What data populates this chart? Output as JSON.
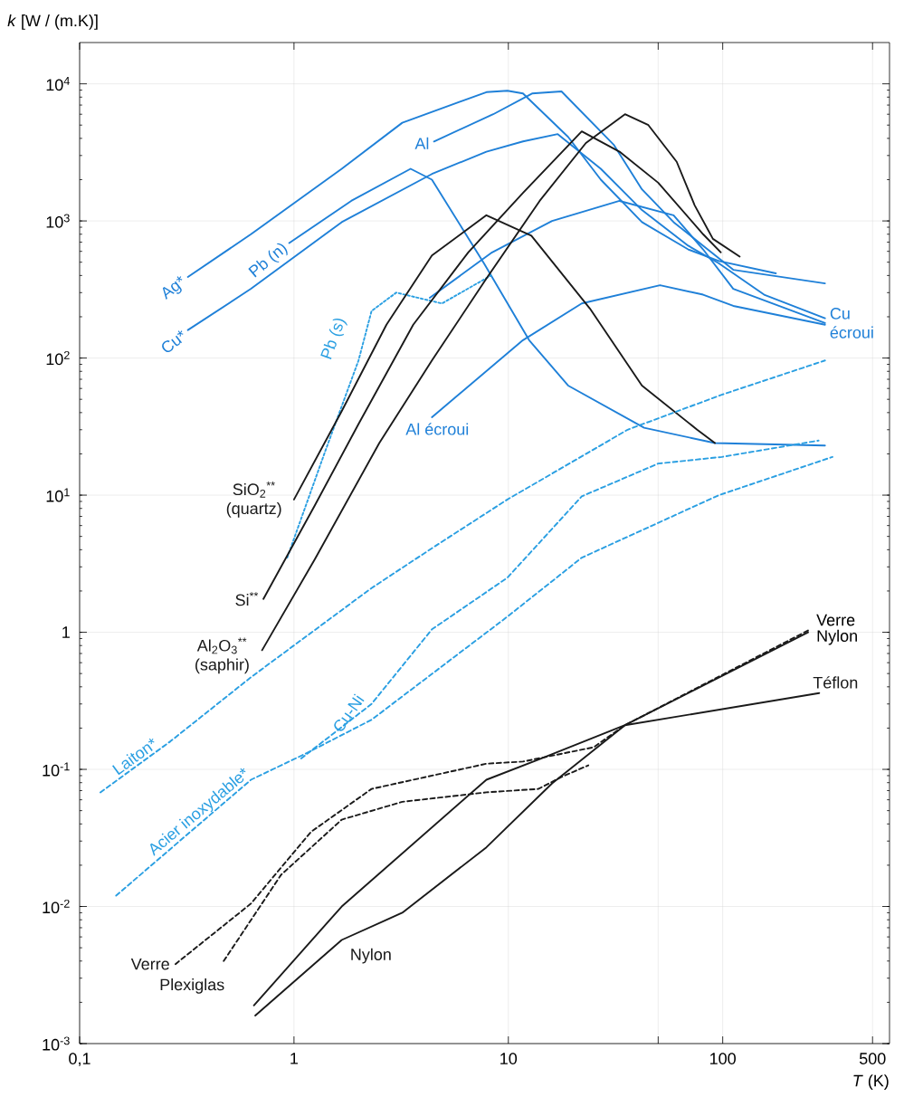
{
  "chart_data": {
    "type": "line",
    "xlabel": "*T* (K)",
    "ylabel": "*k* [W / (m.K)]",
    "log": "xy",
    "grid": true,
    "marker": "none",
    "xlim": [
      0.1,
      600
    ],
    "ylim": [
      0.001,
      20000
    ],
    "xticks": [
      {
        "value": 0.1,
        "label": "0,1"
      },
      1,
      10,
      {
        "value": 50,
        "label": null
      },
      100,
      500
    ],
    "yticks": [
      {
        "value": 0.001,
        "label": "10$^{-3}$"
      },
      {
        "value": 0.01,
        "label": "10$^{-2}$"
      },
      {
        "value": 0.1,
        "label": "10$^{-1}$"
      },
      1,
      {
        "value": 10,
        "label": "10$^{1}$"
      },
      {
        "value": 100,
        "label": "10$^{2}$"
      },
      {
        "value": 1000,
        "label": "10$^{3}$"
      },
      {
        "value": 10000,
        "label": "10$^{4}$"
      }
    ],
    "series": [
      {
        "name": "Ag*",
        "color": "#1f80d8",
        "line_style": "solid",
        "x": [
          0.32,
          0.63,
          1.67,
          3.2,
          7.9,
          9.9,
          11.7,
          19,
          27,
          42,
          69,
          96,
          177
        ],
        "values": [
          390,
          800,
          2400,
          5200,
          8700,
          8900,
          8500,
          4100,
          2000,
          980,
          620,
          510,
          415
        ]
      },
      {
        "name": "Cu*",
        "color": "#1f80d8",
        "line_style": "solid",
        "x": [
          0.32,
          0.63,
          1.67,
          4.4,
          7.9,
          11.7,
          17,
          27,
          42,
          69,
          96,
          156,
          300
        ],
        "values": [
          160,
          320,
          980,
          2200,
          3200,
          3800,
          4300,
          2400,
          1200,
          660,
          490,
          290,
          195
        ]
      },
      {
        "name": "Pb (n)",
        "color": "#1f80d8",
        "line_style": "solid",
        "x": [
          0.95,
          1.85,
          3.5,
          4.4,
          7.7,
          12.5,
          19,
          43,
          92,
          300
        ],
        "values": [
          690,
          1400,
          2400,
          2000,
          490,
          135,
          63,
          31,
          24,
          23
        ]
      },
      {
        "name": "Al",
        "color": "#1f80d8",
        "line_style": "solid",
        "x": [
          4.5,
          8.5,
          12.9,
          17.7,
          31,
          42,
          59,
          81,
          112,
          300
        ],
        "values": [
          3800,
          6000,
          8500,
          8800,
          3600,
          1700,
          980,
          660,
          440,
          350
        ]
      },
      {
        "name": "Cu écroui",
        "color": "#1f80d8",
        "line_style": "solid",
        "x": [
          4.3,
          8.4,
          16,
          33,
          59,
          81,
          112,
          300
        ],
        "values": [
          275,
          590,
          1000,
          1400,
          1100,
          620,
          320,
          180
        ]
      },
      {
        "name": "Al écroui",
        "color": "#1f80d8",
        "line_style": "solid",
        "x": [
          4.4,
          11.7,
          22,
          51,
          81,
          112,
          300
        ],
        "values": [
          37,
          135,
          250,
          340,
          290,
          240,
          175
        ]
      },
      {
        "name": "Pb (s)",
        "color": "#2a9fe2",
        "line_style": "dotted",
        "x": [
          0.93,
          1.4,
          2.0,
          2.3,
          3.0,
          4.9,
          8.3
        ],
        "values": [
          3.5,
          21,
          96,
          220,
          300,
          250,
          400
        ]
      },
      {
        "name": "SiO$_{2}$$^{**}$ (quartz)",
        "color": "#1a1a1a",
        "line_style": "solid",
        "x": [
          1.0,
          1.67,
          2.7,
          4.4,
          7.9,
          12.8,
          24,
          42,
          76,
          92
        ],
        "values": [
          9.3,
          41,
          175,
          560,
          1100,
          780,
          230,
          63,
          30,
          24
        ]
      },
      {
        "name": "Si$^{**}$",
        "color": "#1a1a1a",
        "line_style": "solid",
        "x": [
          0.72,
          1.25,
          2.0,
          3.6,
          6.5,
          11.7,
          22,
          33,
          50,
          81,
          98
        ],
        "values": [
          1.75,
          8.4,
          33,
          175,
          590,
          1600,
          4500,
          3200,
          1900,
          800,
          590
        ]
      },
      {
        "name": "Al$_{2}$O$_{3}$$^{**}$ (saphir)",
        "color": "#1a1a1a",
        "line_style": "solid",
        "x": [
          0.71,
          1.25,
          2.5,
          4.4,
          7.9,
          14,
          23,
          35,
          45,
          61,
          74,
          90,
          120
        ],
        "values": [
          0.74,
          3.4,
          24,
          96,
          380,
          1400,
          3700,
          6000,
          5000,
          2700,
          1300,
          740,
          550
        ]
      },
      {
        "name": "Laiton*",
        "color": "#2a9fe2",
        "line_style": "dashed",
        "x": [
          0.125,
          0.265,
          0.63,
          2.3,
          4.4,
          9.9,
          36,
          99,
          300
        ],
        "values": [
          0.068,
          0.16,
          0.47,
          2.1,
          4.1,
          9.3,
          30,
          54,
          96
        ]
      },
      {
        "name": "Acier inoxydable*",
        "color": "#2a9fe2",
        "line_style": "dashed",
        "x": [
          0.148,
          0.63,
          1.13,
          2.3,
          9.9,
          22,
          96,
          325
        ],
        "values": [
          0.012,
          0.084,
          0.13,
          0.23,
          1.3,
          3.5,
          10,
          19
        ]
      },
      {
        "name": "Cu-Ni",
        "color": "#2a9fe2",
        "line_style": "dashed",
        "x": [
          1.08,
          2.3,
          4.4,
          9.9,
          22,
          50,
          99,
          280
        ],
        "values": [
          0.12,
          0.3,
          1.05,
          2.5,
          9.8,
          17,
          19,
          25
        ]
      },
      {
        "name": "Verre",
        "color": "#1a1a1a",
        "line_style": "dashed",
        "x": [
          0.28,
          0.63,
          1.2,
          2.3,
          7.9,
          11.7,
          25,
          35,
          250
        ],
        "values": [
          0.0038,
          0.0105,
          0.035,
          0.072,
          0.11,
          0.114,
          0.145,
          0.21,
          1.03
        ]
      },
      {
        "name": "Plexiglas",
        "color": "#1a1a1a",
        "line_style": "dashed",
        "x": [
          0.47,
          0.87,
          1.67,
          3.2,
          7.9,
          13.8,
          17.7,
          23.6
        ],
        "values": [
          0.004,
          0.017,
          0.043,
          0.058,
          0.068,
          0.072,
          0.088,
          0.107
        ]
      },
      {
        "name": "Nylon",
        "color": "#1a1a1a",
        "line_style": "solid",
        "x": [
          0.66,
          1.67,
          3.2,
          7.9,
          16,
          35,
          250
        ],
        "values": [
          0.0016,
          0.0057,
          0.009,
          0.027,
          0.079,
          0.21,
          1.0
        ]
      },
      {
        "name": "Téflon",
        "color": "#1a1a1a",
        "line_style": "solid",
        "x": [
          0.65,
          1.67,
          7.9,
          14.2,
          35,
          282
        ],
        "values": [
          0.0019,
          0.01,
          0.084,
          0.12,
          0.21,
          0.36
        ]
      }
    ],
    "annotations": [
      {
        "text": "Verre",
        "x": 250,
        "y": 1.03
      },
      {
        "text": "Nylon",
        "x": 250,
        "y": 1.0
      }
    ]
  }
}
